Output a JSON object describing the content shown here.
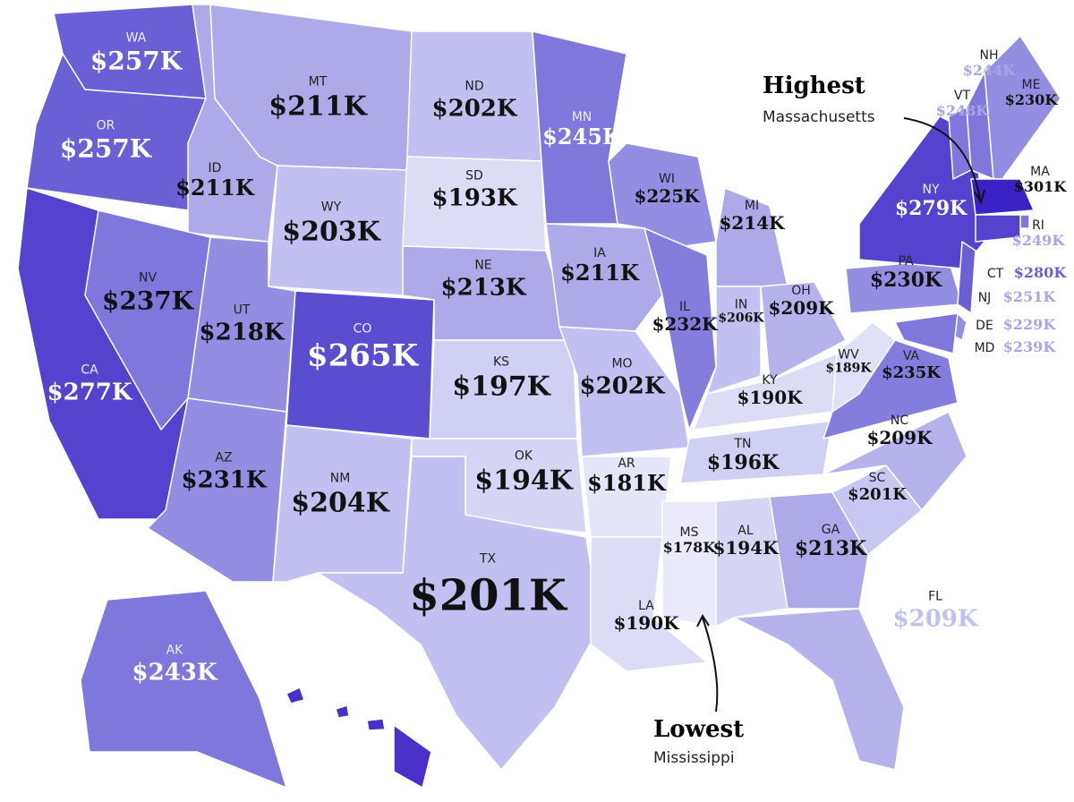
{
  "states": [
    {
      "abbr": "WA",
      "label": "$257K",
      "color": "#6a5fd5",
      "label_color": "#ffffff"
    },
    {
      "abbr": "OR",
      "label": "$257K",
      "color": "#6a5fd5",
      "label_color": "#ffffff"
    },
    {
      "abbr": "CA",
      "label": "$277K",
      "color": "#5542cf",
      "label_color": "#ffffff"
    },
    {
      "abbr": "ID",
      "label": "$211K",
      "color": "#aeaae9",
      "label_color": "#111111"
    },
    {
      "abbr": "NV",
      "label": "$237K",
      "color": "#7f77dc",
      "label_color": "#111111"
    },
    {
      "abbr": "MT",
      "label": "$211K",
      "color": "#aeaae9",
      "label_color": "#111111"
    },
    {
      "abbr": "WY",
      "label": "$203K",
      "color": "#c2c0f0",
      "label_color": "#111111"
    },
    {
      "abbr": "UT",
      "label": "$218K",
      "color": "#948ee2",
      "label_color": "#111111"
    },
    {
      "abbr": "AZ",
      "label": "$231K",
      "color": "#948ee2",
      "label_color": "#111111"
    },
    {
      "abbr": "CO",
      "label": "$265K",
      "color": "#5a4dd0",
      "label_color": "#ffffff"
    },
    {
      "abbr": "NM",
      "label": "$204K",
      "color": "#c2c0f0",
      "label_color": "#111111"
    },
    {
      "abbr": "ND",
      "label": "$202K",
      "color": "#c2c0f0",
      "label_color": "#111111"
    },
    {
      "abbr": "SD",
      "label": "$193K",
      "color": "#dcdcf7",
      "label_color": "#111111"
    },
    {
      "abbr": "NE",
      "label": "$213K",
      "color": "#aeaae9",
      "label_color": "#111111"
    },
    {
      "abbr": "KS",
      "label": "$197K",
      "color": "#d0cff4",
      "label_color": "#111111"
    },
    {
      "abbr": "OK",
      "label": "$194K",
      "color": "#d6d5f5",
      "label_color": "#111111"
    },
    {
      "abbr": "TX",
      "label": "$201K",
      "color": "#c2c0f0",
      "label_color": "#111111"
    },
    {
      "abbr": "MN",
      "label": "$245K",
      "color": "#7f77dc",
      "label_color": "#ffffff"
    },
    {
      "abbr": "IA",
      "label": "$211K",
      "color": "#aeaae9",
      "label_color": "#111111"
    },
    {
      "abbr": "MO",
      "label": "$202K",
      "color": "#c2c0f0",
      "label_color": "#111111"
    },
    {
      "abbr": "AR",
      "label": "$181K",
      "color": "#e6e6fa",
      "label_color": "#111111"
    },
    {
      "abbr": "LA",
      "label": "$190K",
      "color": "#dcdcf7",
      "label_color": "#111111"
    },
    {
      "abbr": "WI",
      "label": "$225K",
      "color": "#948ee2",
      "label_color": "#111111"
    },
    {
      "abbr": "IL",
      "label": "$232K",
      "color": "#857ddd",
      "label_color": "#111111"
    },
    {
      "abbr": "MI",
      "label": "$214K",
      "color": "#aeaae9",
      "label_color": "#111111"
    },
    {
      "abbr": "IN",
      "label": "$206K",
      "color": "#c2c0f0",
      "label_color": "#111111"
    },
    {
      "abbr": "OH",
      "label": "$209K",
      "color": "#b6b3ec",
      "label_color": "#111111"
    },
    {
      "abbr": "KY",
      "label": "$190K",
      "color": "#dcdcf7",
      "label_color": "#111111"
    },
    {
      "abbr": "TN",
      "label": "$196K",
      "color": "#d0cff4",
      "label_color": "#111111"
    },
    {
      "abbr": "MS",
      "label": "$178K",
      "color": "#eaeafb",
      "label_color": "#111111"
    },
    {
      "abbr": "AL",
      "label": "$194K",
      "color": "#d6d5f5",
      "label_color": "#111111"
    },
    {
      "abbr": "GA",
      "label": "$213K",
      "color": "#aeaae9",
      "label_color": "#111111"
    },
    {
      "abbr": "FL",
      "label": "$209K",
      "color": "#b6b3ec",
      "label_color": "#c2c0f0"
    },
    {
      "abbr": "SC",
      "label": "$201K",
      "color": "#c8c7f2",
      "label_color": "#111111"
    },
    {
      "abbr": "NC",
      "label": "$209K",
      "color": "#b6b3ec",
      "label_color": "#111111"
    },
    {
      "abbr": "VA",
      "label": "$235K",
      "color": "#857ddd",
      "label_color": "#111111"
    },
    {
      "abbr": "WV",
      "label": "$189K",
      "color": "#e0e0f8",
      "label_color": "#111111"
    },
    {
      "abbr": "PA",
      "label": "$230K",
      "color": "#948ee2",
      "label_color": "#111111"
    },
    {
      "abbr": "NY",
      "label": "$279K",
      "color": "#5542cf",
      "label_color": "#ffffff"
    },
    {
      "abbr": "VT",
      "label": "$248K",
      "color": "#7f77dc",
      "label_color": "#a9a5e6"
    },
    {
      "abbr": "NH",
      "label": "$244K",
      "color": "#7f77dc",
      "label_color": "#a9a5e6"
    },
    {
      "abbr": "ME",
      "label": "$230K",
      "color": "#948ee2",
      "label_color": "#111111"
    },
    {
      "abbr": "MA",
      "label": "$301K",
      "color": "#3b22c4",
      "label_color": "#111111"
    },
    {
      "abbr": "RI",
      "label": "$249K",
      "color": "#7f77dc",
      "label_color": "#a9a5e6"
    },
    {
      "abbr": "CT",
      "label": "$280K",
      "color": "#5542cf",
      "label_color": "#6a5fd5"
    },
    {
      "abbr": "NJ",
      "label": "$251K",
      "color": "#6a5fd5",
      "label_color": "#a9a5e6"
    },
    {
      "abbr": "DE",
      "label": "$229K",
      "color": "#948ee2",
      "label_color": "#a9a5e6"
    },
    {
      "abbr": "MD",
      "label": "$239K",
      "color": "#7f77dc",
      "label_color": "#a9a5e6"
    },
    {
      "abbr": "AK",
      "label": "$243K",
      "color": "#7f77dc",
      "label_color": "#ffffff"
    },
    {
      "color": "#4a2fc9"
    }
  ],
  "annotations": [
    {
      "title": "Highest",
      "subtitle": "Massachusetts"
    },
    {
      "title": "Lowest",
      "subtitle": "Mississippi"
    }
  ]
}
